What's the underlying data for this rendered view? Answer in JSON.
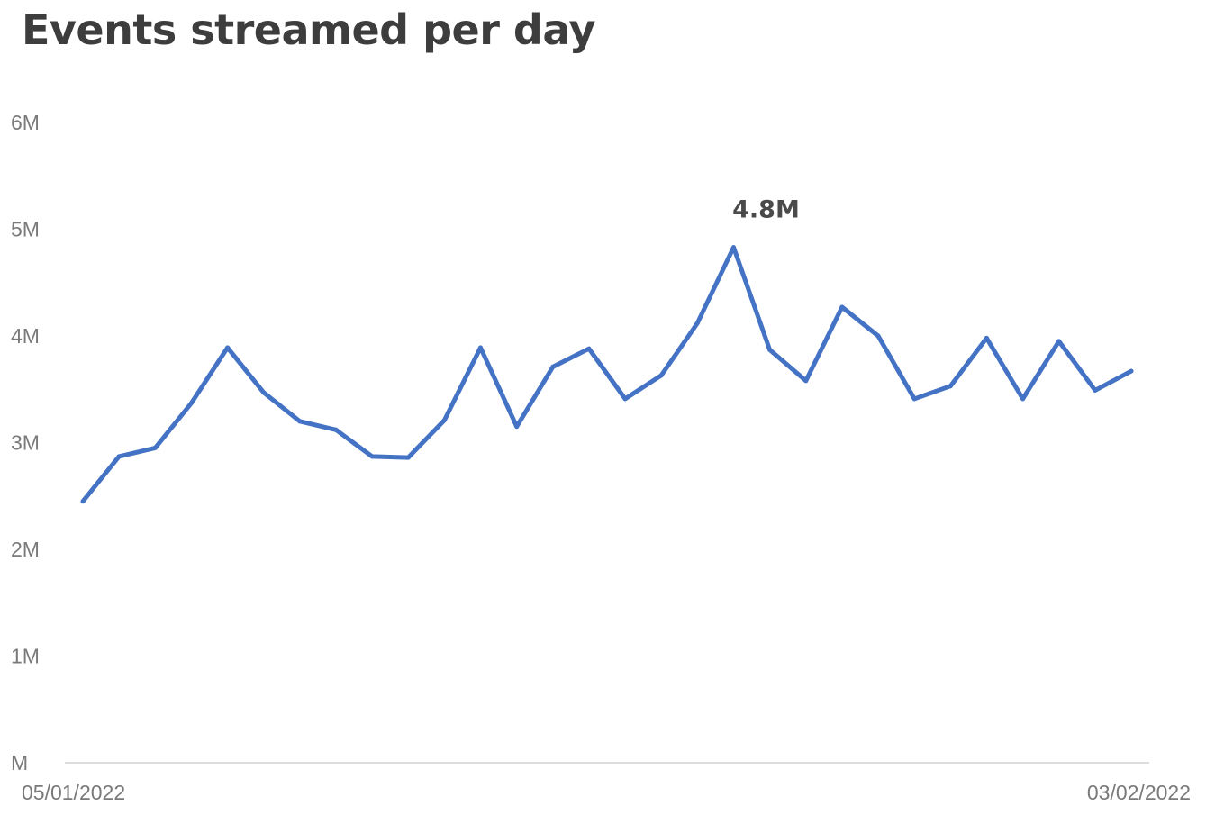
{
  "chart_data": {
    "type": "line",
    "title": "Events streamed per day",
    "xlabel": "",
    "ylabel": "",
    "x_start_label": "05/01/2022",
    "x_end_label": "03/02/2022",
    "ylim": [
      0,
      6000000
    ],
    "y_ticks": [
      {
        "value": 0,
        "label": "M"
      },
      {
        "value": 1000000,
        "label": "1M"
      },
      {
        "value": 2000000,
        "label": "2M"
      },
      {
        "value": 3000000,
        "label": "3M"
      },
      {
        "value": 4000000,
        "label": "4M"
      },
      {
        "value": 5000000,
        "label": "5M"
      },
      {
        "value": 6000000,
        "label": "6M"
      }
    ],
    "grid": false,
    "legend": "none",
    "series": [
      {
        "color": "#4472c4",
        "values": [
          2450000,
          2870000,
          2950000,
          3370000,
          3890000,
          3470000,
          3200000,
          3120000,
          2870000,
          2860000,
          3210000,
          3890000,
          3150000,
          3710000,
          3880000,
          3410000,
          3630000,
          4120000,
          4830000,
          3870000,
          3580000,
          4270000,
          4000000,
          3410000,
          3530000,
          3980000,
          3410000,
          3950000,
          3490000,
          3670000
        ]
      }
    ],
    "annotations": [
      {
        "index": 18,
        "label": "4.8M"
      }
    ]
  }
}
